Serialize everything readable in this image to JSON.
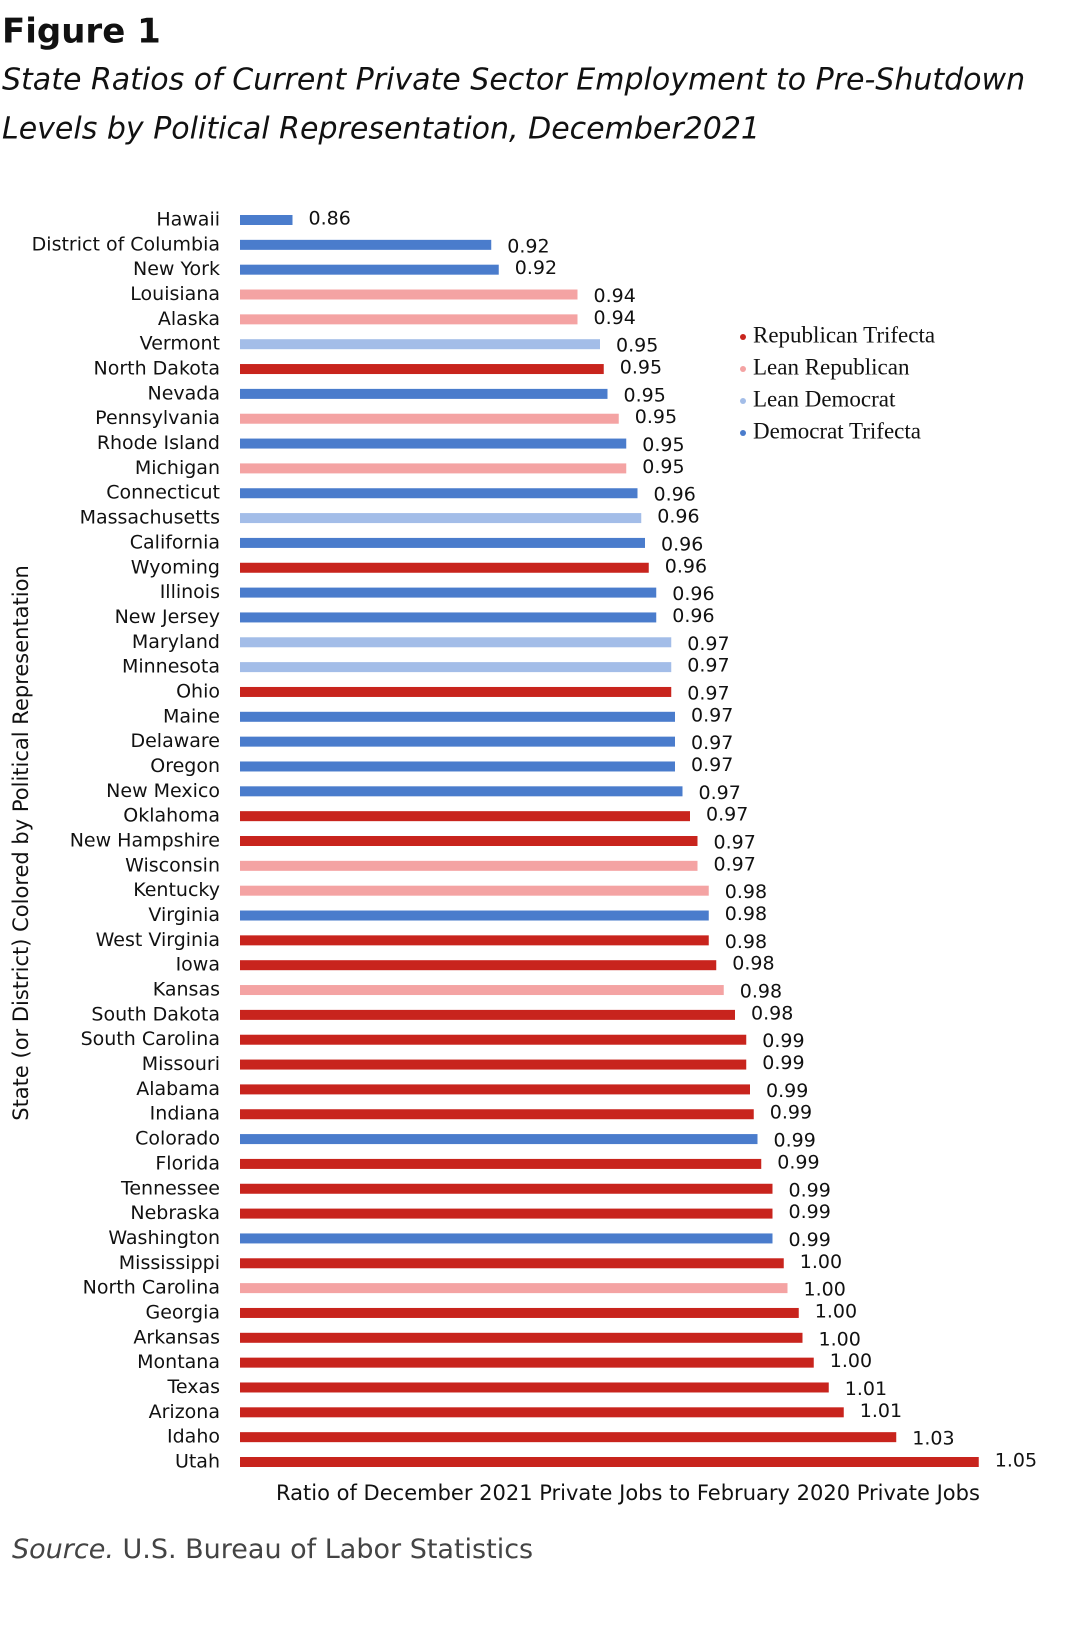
{
  "chart_data": {
    "type": "bar",
    "orientation": "horizontal",
    "title": "Figure 1",
    "subtitle": [
      "State Ratios of Current Private Sector Employment to Pre-Shutdown",
      "Levels by Political Representation, December2021"
    ],
    "x_label": "Ratio of December 2021 Private Jobs to February 2020 Private Jobs",
    "y_label": "State (or District) Colored by Political Representation",
    "source": {
      "label": "Source.",
      "text": "U.S. Bureau of Labor Statistics"
    },
    "xlim": [
      0.85,
      1.05
    ],
    "categories": [
      "Hawaii",
      "District of Columbia",
      "New York",
      "Louisiana",
      "Alaska",
      "Vermont",
      "North Dakota",
      "Nevada",
      "Pennsylvania",
      "Rhode Island",
      "Michigan",
      "Connecticut",
      "Massachusetts",
      "California",
      "Wyoming",
      "Illinois",
      "New Jersey",
      "Maryland",
      "Minnesota",
      "Ohio",
      "Maine",
      "Delaware",
      "Oregon",
      "New Mexico",
      "Oklahoma",
      "New Hampshire",
      "Wisconsin",
      "Kentucky",
      "Virginia",
      "West Virginia",
      "Iowa",
      "Kansas",
      "South Dakota",
      "South Carolina",
      "Missouri",
      "Alabama",
      "Indiana",
      "Colorado",
      "Florida",
      "Tennessee",
      "Nebraska",
      "Washington",
      "Mississippi",
      "North Carolina",
      "Georgia",
      "Arkansas",
      "Montana",
      "Texas",
      "Arizona",
      "Idaho",
      "Utah"
    ],
    "values": [
      0.864,
      0.917,
      0.919,
      0.94,
      0.94,
      0.946,
      0.947,
      0.948,
      0.951,
      0.953,
      0.953,
      0.956,
      0.957,
      0.958,
      0.959,
      0.961,
      0.961,
      0.965,
      0.965,
      0.965,
      0.966,
      0.966,
      0.966,
      0.968,
      0.97,
      0.972,
      0.972,
      0.975,
      0.975,
      0.975,
      0.977,
      0.979,
      0.982,
      0.985,
      0.985,
      0.986,
      0.987,
      0.988,
      0.989,
      0.992,
      0.992,
      0.992,
      0.995,
      0.996,
      0.999,
      1.0,
      1.003,
      1.007,
      1.011,
      1.025,
      1.047
    ],
    "value_labels": [
      "0.86",
      "0.92",
      "0.92",
      "0.94",
      "0.94",
      "0.95",
      "0.95",
      "0.95",
      "0.95",
      "0.95",
      "0.95",
      "0.96",
      "0.96",
      "0.96",
      "0.96",
      "0.96",
      "0.96",
      "0.97",
      "0.97",
      "0.97",
      "0.97",
      "0.97",
      "0.97",
      "0.97",
      "0.97",
      "0.97",
      "0.97",
      "0.98",
      "0.98",
      "0.98",
      "0.98",
      "0.98",
      "0.98",
      "0.99",
      "0.99",
      "0.99",
      "0.99",
      "0.99",
      "0.99",
      "0.99",
      "0.99",
      "0.99",
      "1.00",
      "1.00",
      "1.00",
      "1.00",
      "1.00",
      "1.01",
      "1.01",
      "1.03",
      "1.05"
    ],
    "colors": [
      "#4a7ccc",
      "#4a7ccc",
      "#4a7ccc",
      "#f4a3a3",
      "#f4a3a3",
      "#a3bde8",
      "#c8241d",
      "#4a7ccc",
      "#f4a3a3",
      "#4a7ccc",
      "#f4a3a3",
      "#4a7ccc",
      "#a3bde8",
      "#4a7ccc",
      "#c8241d",
      "#4a7ccc",
      "#4a7ccc",
      "#a3bde8",
      "#a3bde8",
      "#c8241d",
      "#4a7ccc",
      "#4a7ccc",
      "#4a7ccc",
      "#4a7ccc",
      "#c8241d",
      "#c8241d",
      "#f4a3a3",
      "#f4a3a3",
      "#4a7ccc",
      "#c8241d",
      "#c8241d",
      "#f4a3a3",
      "#c8241d",
      "#c8241d",
      "#c8241d",
      "#c8241d",
      "#c8241d",
      "#4a7ccc",
      "#c8241d",
      "#c8241d",
      "#c8241d",
      "#4a7ccc",
      "#c8241d",
      "#f4a3a3",
      "#c8241d",
      "#c8241d",
      "#c8241d",
      "#c8241d",
      "#c8241d",
      "#c8241d",
      "#c8241d"
    ],
    "legend": [
      {
        "name": "Republican Trifecta",
        "color": "#c8241d"
      },
      {
        "name": "Lean Republican",
        "color": "#f4a3a3"
      },
      {
        "name": "Lean Democrat",
        "color": "#a3bde8"
      },
      {
        "name": "Democrat Trifecta",
        "color": "#4a7ccc"
      }
    ]
  }
}
